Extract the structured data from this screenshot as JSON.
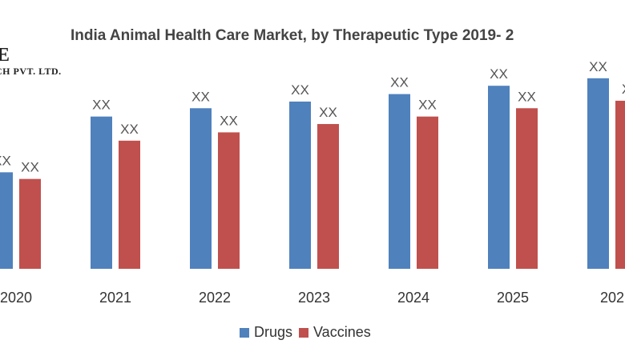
{
  "logo": {
    "line1": "E",
    "line2": "CH PVT. LTD."
  },
  "colors": {
    "drugs": "#4f81bd",
    "vaccines": "#c0504d"
  },
  "chart_data": {
    "type": "bar",
    "title": "India Animal Health Care Market, by Therapeutic Type  2019- 2",
    "categories": [
      "2020",
      "2021",
      "2022",
      "2023",
      "2024",
      "2025",
      "202"
    ],
    "series": [
      {
        "name": "Drugs",
        "values": [
          116,
          183,
          193,
          201,
          210,
          220,
          229
        ],
        "labels": [
          "XX",
          "XX",
          "XX",
          "XX",
          "XX",
          "XX",
          "XX"
        ]
      },
      {
        "name": "Vaccines",
        "values": [
          108,
          154,
          164,
          174,
          183,
          193,
          202
        ],
        "labels": [
          "XX",
          "XX",
          "XX",
          "XX",
          "XX",
          "XX",
          "X"
        ]
      }
    ],
    "xlabel": "",
    "ylabel": "",
    "ylim": [
      0,
      250
    ],
    "grid": false,
    "legend_position": "bottom"
  }
}
